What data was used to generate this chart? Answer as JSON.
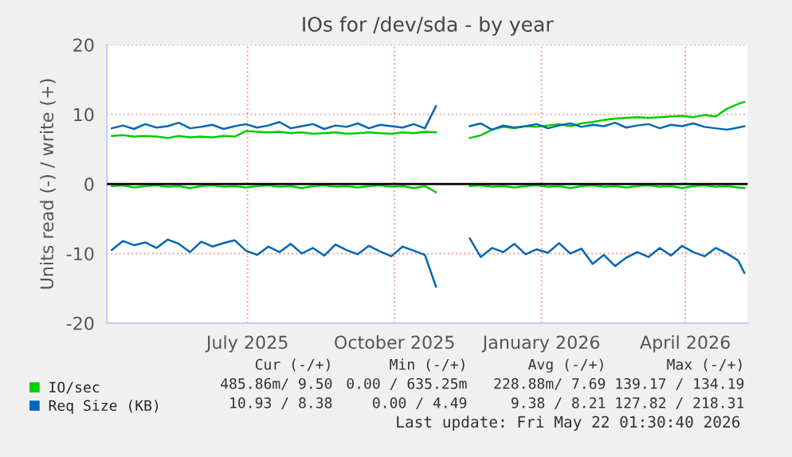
{
  "chart_data": {
    "type": "line",
    "title": "IOs for /dev/sda - by year",
    "ylabel": "Units read (-) / write (+)",
    "x": [
      "2025-04-07",
      "2025-04-14",
      "2025-04-21",
      "2025-04-28",
      "2025-05-05",
      "2025-05-12",
      "2025-05-19",
      "2025-05-26",
      "2025-06-02",
      "2025-06-09",
      "2025-06-16",
      "2025-06-23",
      "2025-06-30",
      "2025-07-07",
      "2025-07-14",
      "2025-07-21",
      "2025-07-28",
      "2025-08-04",
      "2025-08-11",
      "2025-08-18",
      "2025-08-25",
      "2025-09-01",
      "2025-09-08",
      "2025-09-15",
      "2025-09-22",
      "2025-09-29",
      "2025-10-06",
      "2025-10-13",
      "2025-10-20",
      "2025-10-27",
      "2025-11-03",
      "2025-11-10",
      "2025-11-17",
      "2025-11-24",
      "2025-12-01",
      "2025-12-08",
      "2025-12-15",
      "2025-12-22",
      "2025-12-29",
      "2026-01-05",
      "2026-01-12",
      "2026-01-19",
      "2026-01-26",
      "2026-02-02",
      "2026-02-09",
      "2026-02-16",
      "2026-02-23",
      "2026-03-02",
      "2026-03-09",
      "2026-03-16",
      "2026-03-23",
      "2026-03-30",
      "2026-04-06",
      "2026-04-13",
      "2026-04-20",
      "2026-04-27",
      "2026-05-04",
      "2026-05-08"
    ],
    "series": [
      {
        "name": "IO/sec",
        "color": "#00cc00",
        "values": [
          6.9,
          7.0,
          6.8,
          6.9,
          6.8,
          6.6,
          6.9,
          6.7,
          6.8,
          6.7,
          6.9,
          6.8,
          7.6,
          7.5,
          7.4,
          7.5,
          7.3,
          7.4,
          7.2,
          7.3,
          7.4,
          7.2,
          7.3,
          7.4,
          7.3,
          7.2,
          7.4,
          7.3,
          7.5,
          7.4,
          null,
          null,
          6.6,
          7.0,
          7.8,
          8.2,
          8.0,
          8.3,
          8.2,
          8.4,
          8.6,
          8.3,
          8.7,
          8.9,
          9.2,
          9.4,
          9.5,
          9.6,
          9.5,
          9.6,
          9.7,
          9.8,
          9.6,
          9.9,
          9.7,
          10.8,
          11.5,
          11.8
        ]
      },
      {
        "color": "#00cc00",
        "values": [
          -0.3,
          -0.2,
          -0.5,
          -0.3,
          -0.2,
          -0.4,
          -0.3,
          -0.6,
          -0.3,
          -0.2,
          -0.4,
          -0.3,
          -0.5,
          -0.3,
          -0.2,
          -0.4,
          -0.3,
          -0.6,
          -0.3,
          -0.2,
          -0.4,
          -0.3,
          -0.5,
          -0.3,
          -0.2,
          -0.4,
          -0.3,
          -0.6,
          -0.3,
          -1.2,
          null,
          null,
          -0.3,
          -0.2,
          -0.4,
          -0.3,
          -0.5,
          -0.3,
          -0.2,
          -0.4,
          -0.3,
          -0.6,
          -0.3,
          -0.2,
          -0.4,
          -0.3,
          -0.5,
          -0.3,
          -0.2,
          -0.4,
          -0.3,
          -0.6,
          -0.3,
          -0.2,
          -0.4,
          -0.3,
          -0.5,
          -0.6
        ]
      },
      {
        "name": "Req Size (KB)",
        "color": "#0066b3",
        "values": [
          8.0,
          8.4,
          7.9,
          8.6,
          8.1,
          8.3,
          8.8,
          8.0,
          8.2,
          8.5,
          7.9,
          8.3,
          8.6,
          8.1,
          8.4,
          8.9,
          8.0,
          8.3,
          8.6,
          7.9,
          8.4,
          8.2,
          8.7,
          8.0,
          8.5,
          8.3,
          8.1,
          8.6,
          8.0,
          11.2,
          null,
          null,
          8.3,
          8.7,
          7.8,
          8.4,
          8.1,
          8.3,
          8.6,
          8.0,
          8.4,
          8.7,
          8.2,
          8.5,
          8.3,
          8.8,
          8.1,
          8.4,
          8.6,
          8.0,
          8.5,
          8.3,
          8.7,
          8.2,
          8.0,
          7.8,
          8.1,
          8.3
        ]
      },
      {
        "color": "#0066b3",
        "values": [
          -9.5,
          -8.2,
          -8.8,
          -8.4,
          -9.2,
          -8.0,
          -8.6,
          -9.8,
          -8.3,
          -9.0,
          -8.5,
          -8.1,
          -9.6,
          -10.2,
          -9.0,
          -9.8,
          -8.6,
          -10.0,
          -9.2,
          -10.3,
          -8.7,
          -9.5,
          -10.1,
          -8.9,
          -9.7,
          -10.4,
          -9.0,
          -9.6,
          -10.2,
          -14.8,
          null,
          null,
          -7.8,
          -10.5,
          -9.2,
          -9.8,
          -8.6,
          -10.1,
          -9.4,
          -9.9,
          -8.5,
          -10.0,
          -9.3,
          -11.5,
          -10.2,
          -11.8,
          -10.6,
          -9.8,
          -10.5,
          -9.2,
          -10.3,
          -8.9,
          -9.8,
          -10.4,
          -9.2,
          -10.0,
          -11.0,
          -12.8
        ]
      }
    ],
    "xlim": [
      "2025-04-04",
      "2026-05-10"
    ],
    "xticks": [
      {
        "value": "2025-07-01",
        "label": "July 2025"
      },
      {
        "value": "2025-10-01",
        "label": "October 2025"
      },
      {
        "value": "2026-01-01",
        "label": "January 2026"
      },
      {
        "value": "2026-04-01",
        "label": "April 2026"
      }
    ],
    "ylim": [
      -20,
      20
    ],
    "yticks": [
      -20,
      -10,
      0,
      10,
      20
    ],
    "ref_lines": [
      {
        "axis": "y",
        "value": 0,
        "color": "#000000"
      }
    ],
    "grid": true,
    "legend": "bottom",
    "annotations": [
      "Cur (-/+)",
      "Min (-/+)",
      "Avg (-/+)",
      "Max (-/+)",
      "485.86m/ 9.50",
      "0.00 / 635.25m",
      "228.88m/ 7.69",
      "139.17 / 134.19",
      "10.93 / 8.38",
      "0.00 / 4.49",
      "9.38 / 8.21",
      "127.82 / 218.31",
      "Last update: Fri May 22 01:30:40 2026"
    ]
  }
}
